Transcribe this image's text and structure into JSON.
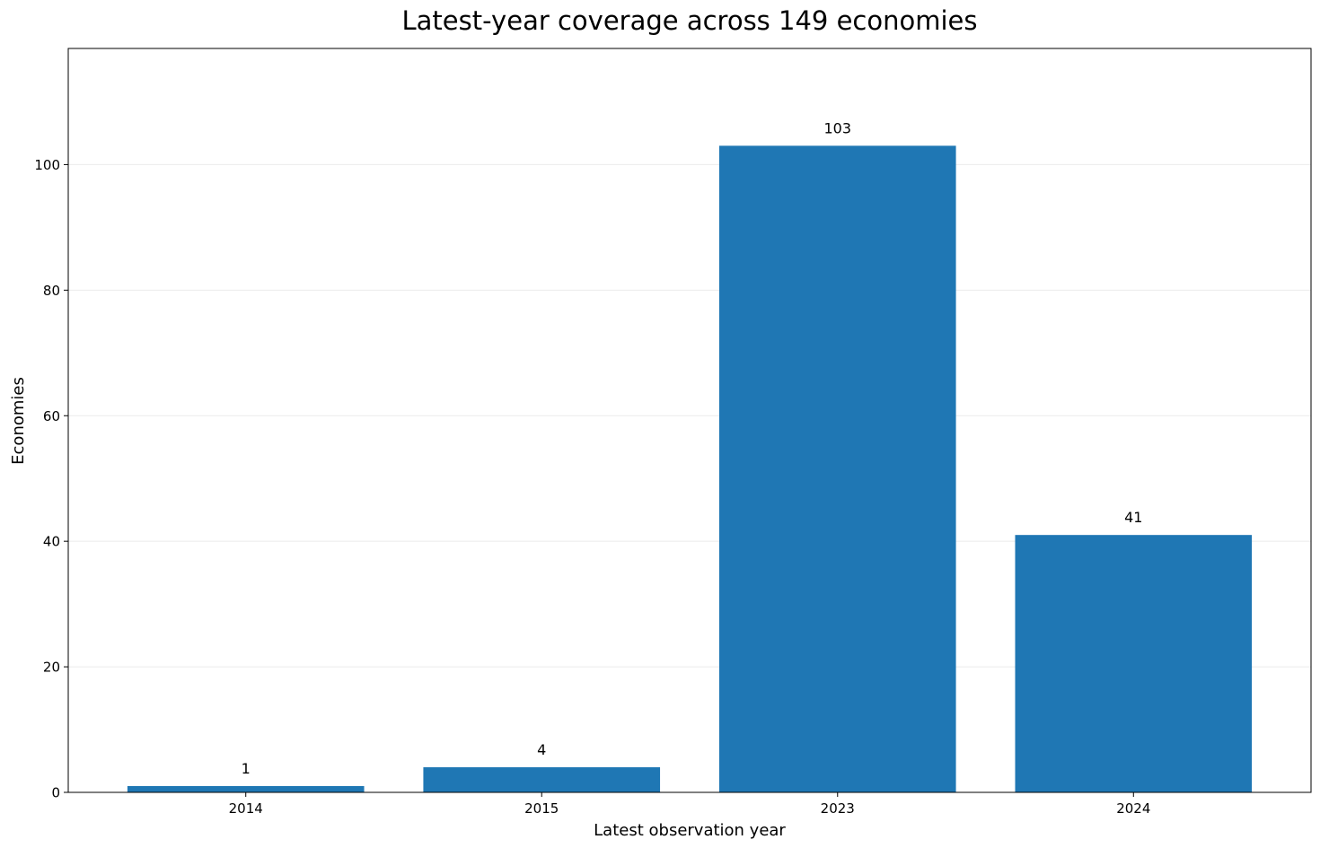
{
  "chart_data": {
    "type": "bar",
    "title": "Latest-year coverage across 149 economies",
    "xlabel": "Latest observation year",
    "ylabel": "Economies",
    "categories": [
      "2014",
      "2015",
      "2023",
      "2024"
    ],
    "values": [
      1,
      4,
      103,
      41
    ],
    "data_labels": [
      "1",
      "4",
      "103",
      "41"
    ],
    "ylim": [
      0,
      118.5
    ],
    "yticks": [
      0,
      20,
      40,
      60,
      80,
      100
    ],
    "grid": "y",
    "bar_color": "#1f77b4",
    "grid_color": "#ebebeb"
  }
}
